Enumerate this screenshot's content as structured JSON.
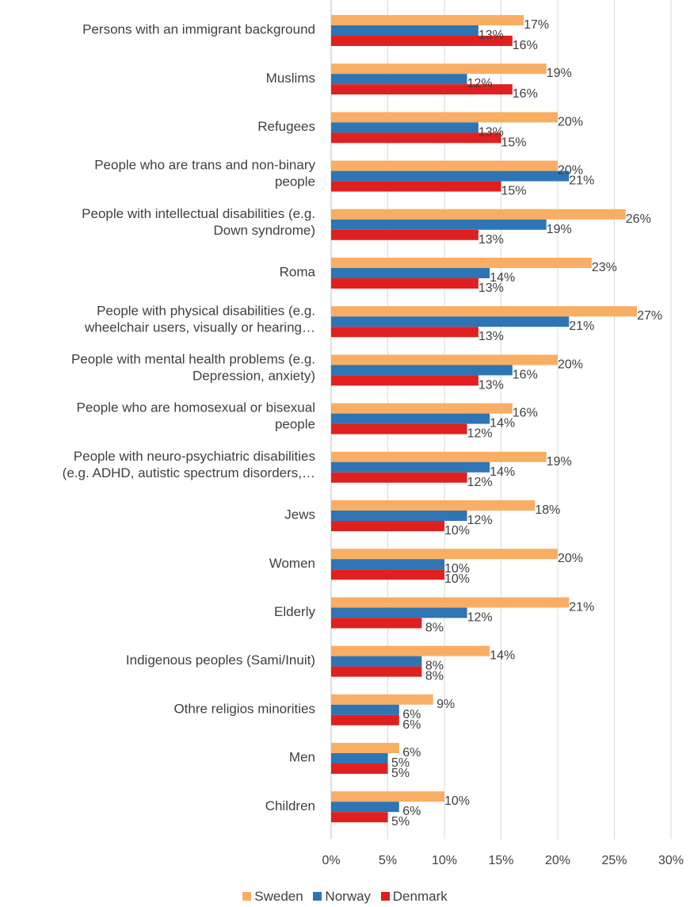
{
  "chart_data": {
    "type": "bar",
    "orientation": "horizontal",
    "grid": true,
    "legend_position": "bottom",
    "xlim": [
      0,
      30
    ],
    "x_ticks": [
      "0%",
      "5%",
      "10%",
      "15%",
      "20%",
      "25%",
      "30%"
    ],
    "categories": [
      [
        "Persons with an immigrant background"
      ],
      [
        "Muslims"
      ],
      [
        "Refugees"
      ],
      [
        "People who are trans and non-binary",
        "people"
      ],
      [
        "People with intellectual disabilities (e.g.",
        "Down syndrome)"
      ],
      [
        "Roma"
      ],
      [
        "People with physical disabilities (e.g.",
        "wheelchair users, visually or hearing…"
      ],
      [
        "People with mental health problems (e.g.",
        "Depression, anxiety)"
      ],
      [
        "People who are homosexual or bisexual",
        "people"
      ],
      [
        "People with neuro-psychiatric disabilities",
        "(e.g. ADHD, autistic spectrum disorders,…"
      ],
      [
        "Jews"
      ],
      [
        "Women"
      ],
      [
        "Elderly"
      ],
      [
        "Indigenous peoples (Sami/Inuit)"
      ],
      [
        "Othre religios minorities"
      ],
      [
        "Men"
      ],
      [
        "Children"
      ]
    ],
    "series": [
      {
        "name": "Sweden",
        "color": "#F9AE63",
        "values": [
          17,
          19,
          20,
          20,
          26,
          23,
          27,
          20,
          16,
          19,
          18,
          20,
          21,
          14,
          9,
          6,
          10
        ],
        "labels": [
          "17%",
          "19%",
          "20%",
          "20%",
          "26%",
          "23%",
          "27%",
          "20%",
          "16%",
          "19%",
          "18%",
          "20%",
          "21%",
          "14%",
          "9%",
          "6%",
          "10%"
        ]
      },
      {
        "name": "Norway",
        "color": "#2E75B6",
        "values": [
          13,
          12,
          13,
          21,
          19,
          14,
          21,
          16,
          14,
          14,
          12,
          10,
          12,
          8,
          6,
          5,
          6
        ],
        "labels": [
          "13%",
          "12%",
          "13%",
          "21%",
          "19%",
          "14%",
          "21%",
          "16%",
          "14%",
          "14%",
          "12%",
          "10%",
          "12%",
          "8%",
          "6%",
          "5%",
          "6%"
        ]
      },
      {
        "name": "Denmark",
        "color": "#E0201F",
        "values": [
          16,
          16,
          15,
          15,
          13,
          13,
          13,
          13,
          12,
          12,
          10,
          10,
          8,
          8,
          6,
          5,
          5
        ],
        "labels": [
          "16%",
          "16%",
          "15%",
          "15%",
          "13%",
          "13%",
          "13%",
          "13%",
          "12%",
          "12%",
          "10%",
          "10%",
          "8%",
          "8%",
          "6%",
          "5%",
          "5%"
        ]
      }
    ]
  },
  "legend": {
    "items": [
      "Sweden",
      "Norway",
      "Denmark"
    ]
  }
}
